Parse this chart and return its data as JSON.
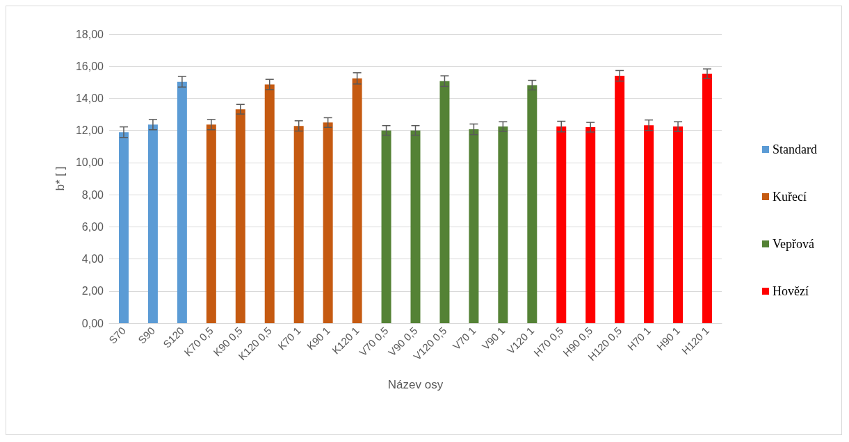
{
  "chart_data": {
    "type": "bar",
    "xlabel": "Název osy",
    "ylabel": "b* [ ]",
    "categories": [
      "S70",
      "S90",
      "S120",
      "K70 0,5",
      "K90 0,5",
      "K120 0,5",
      "K70 1",
      "K90 1",
      "K120 1",
      "V70 0,5",
      "V90 0,5",
      "V120 0,5",
      "V70 1",
      "V90 1",
      "V120 1",
      "H70 0,5",
      "H90 0,5",
      "H120 0,5",
      "H70 1",
      "H90 1",
      "H120 1"
    ],
    "series": [
      {
        "name": "Standard",
        "color": "#5b9bd5",
        "values": [
          11.89,
          12.36,
          15.03,
          null,
          null,
          null,
          null,
          null,
          null,
          null,
          null,
          null,
          null,
          null,
          null,
          null,
          null,
          null,
          null,
          null,
          null
        ],
        "errors": [
          0.33,
          0.32,
          0.33,
          null,
          null,
          null,
          null,
          null,
          null,
          null,
          null,
          null,
          null,
          null,
          null,
          null,
          null,
          null,
          null,
          null,
          null
        ]
      },
      {
        "name": "Kuřecí",
        "color": "#c55a11",
        "values": [
          null,
          null,
          null,
          12.36,
          13.32,
          14.86,
          12.28,
          12.49,
          15.24,
          null,
          null,
          null,
          null,
          null,
          null,
          null,
          null,
          null,
          null,
          null,
          null
        ],
        "errors": [
          null,
          null,
          null,
          0.32,
          0.3,
          0.32,
          0.32,
          0.3,
          0.35,
          null,
          null,
          null,
          null,
          null,
          null,
          null,
          null,
          null,
          null,
          null,
          null
        ]
      },
      {
        "name": "Vepřová",
        "color": "#548235",
        "values": [
          null,
          null,
          null,
          null,
          null,
          null,
          null,
          null,
          null,
          12.0,
          12.0,
          15.07,
          12.07,
          12.24,
          14.82,
          null,
          null,
          null,
          null,
          null,
          null
        ],
        "errors": [
          null,
          null,
          null,
          null,
          null,
          null,
          null,
          null,
          null,
          0.3,
          0.3,
          0.33,
          0.33,
          0.3,
          0.3,
          null,
          null,
          null,
          null,
          null,
          null
        ]
      },
      {
        "name": "Hovězí",
        "color": "#ff0000",
        "values": [
          null,
          null,
          null,
          null,
          null,
          null,
          null,
          null,
          null,
          null,
          null,
          null,
          null,
          null,
          null,
          12.24,
          12.2,
          15.4,
          12.32,
          12.24,
          15.53
        ],
        "errors": [
          null,
          null,
          null,
          null,
          null,
          null,
          null,
          null,
          null,
          null,
          null,
          null,
          null,
          null,
          null,
          0.33,
          0.3,
          0.33,
          0.33,
          0.3,
          0.3
        ]
      }
    ],
    "ylim": [
      0,
      18
    ],
    "yticks": [
      {
        "value": 0,
        "label": "0,00"
      },
      {
        "value": 2,
        "label": "2,00"
      },
      {
        "value": 4,
        "label": "4,00"
      },
      {
        "value": 6,
        "label": "6,00"
      },
      {
        "value": 8,
        "label": "8,00"
      },
      {
        "value": 10,
        "label": "10,00"
      },
      {
        "value": 12,
        "label": "12,00"
      },
      {
        "value": 14,
        "label": "14,00"
      },
      {
        "value": 16,
        "label": "16,00"
      },
      {
        "value": 18,
        "label": "18,00"
      }
    ],
    "grid": "y",
    "legend": "right"
  }
}
